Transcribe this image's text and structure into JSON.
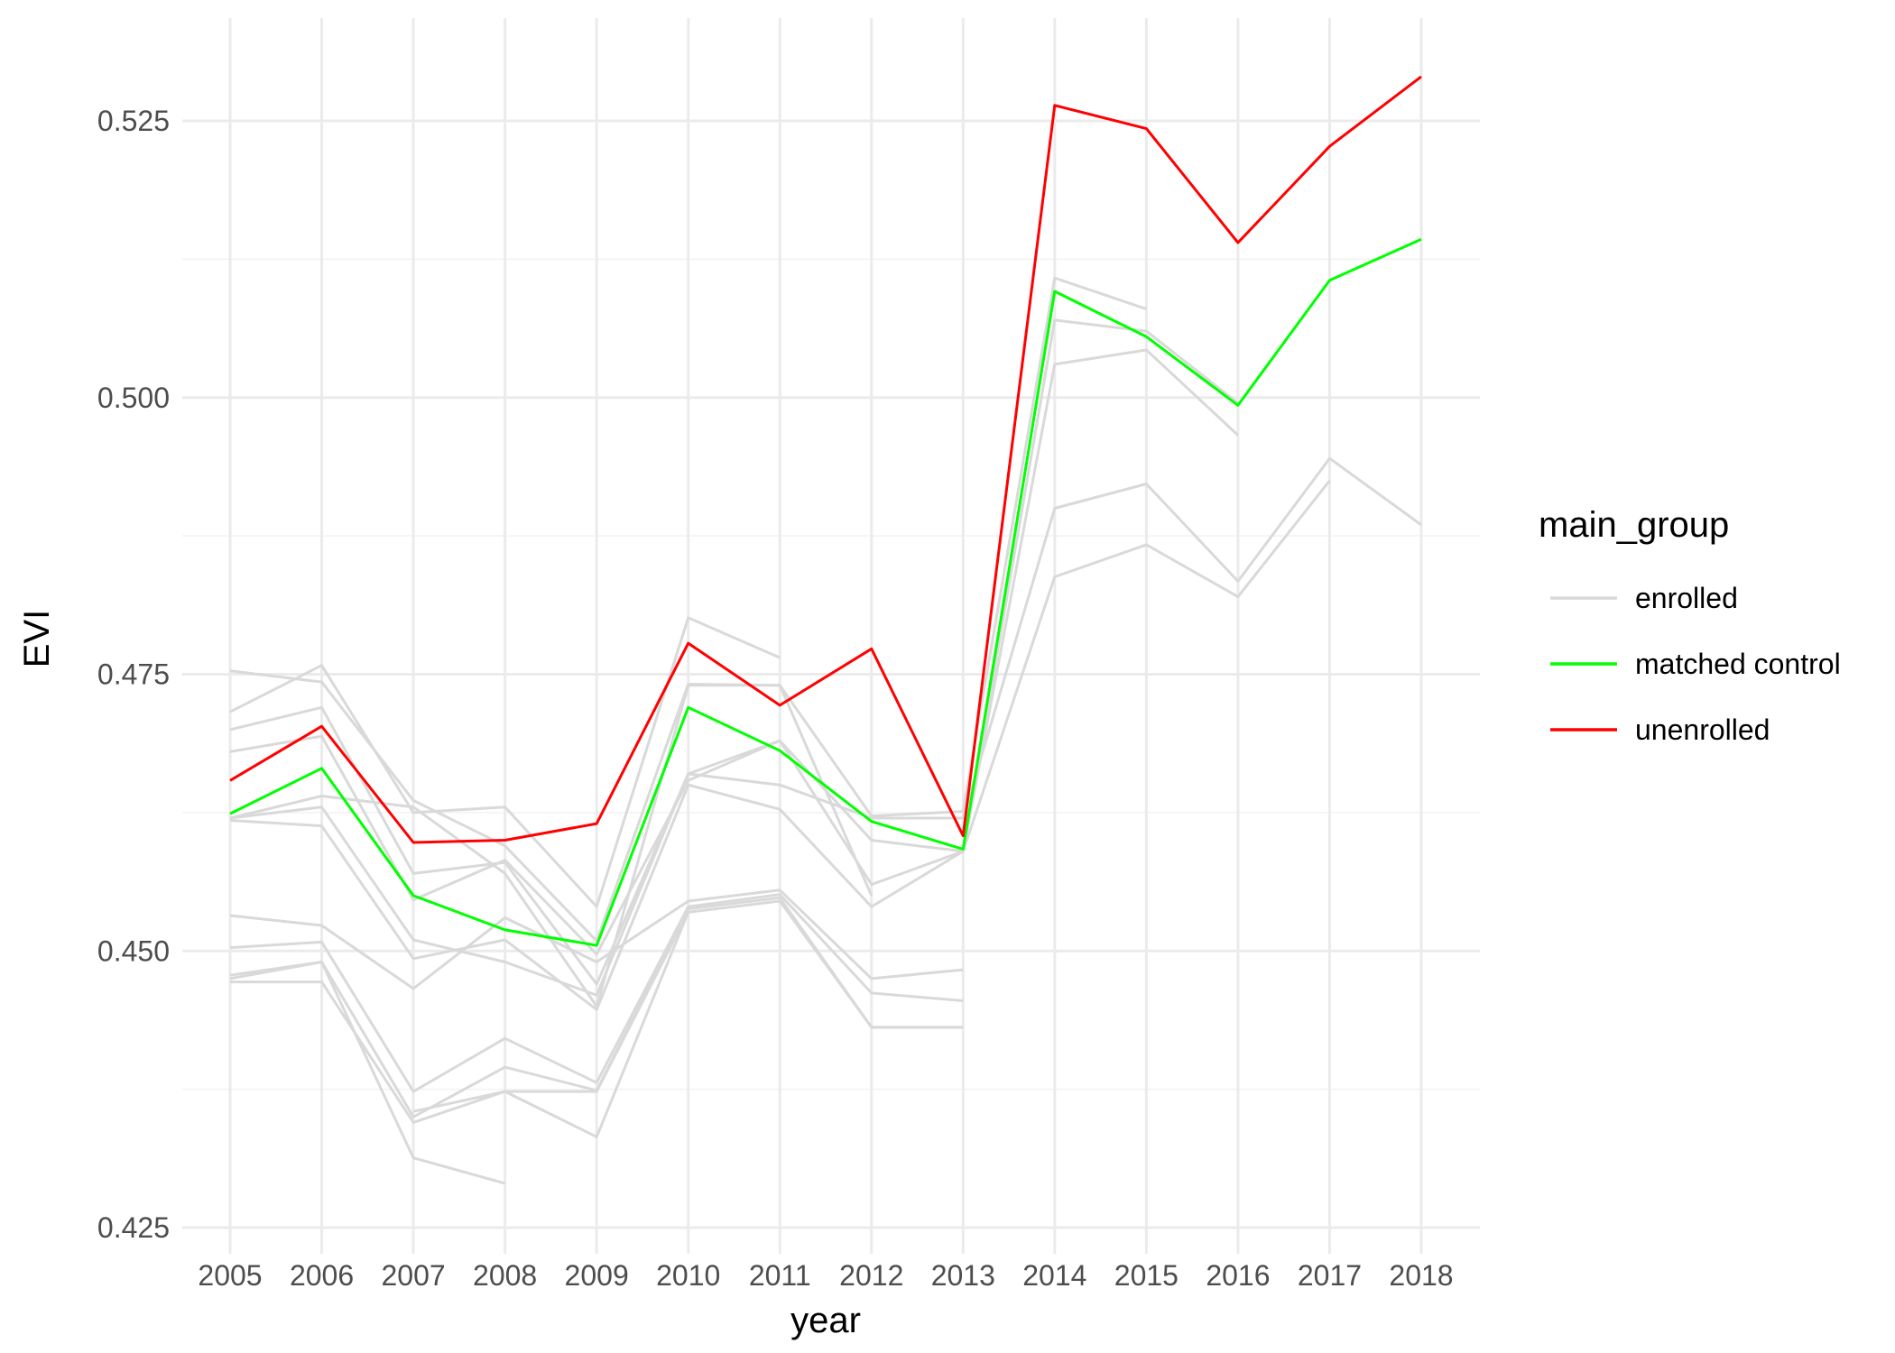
{
  "chart_data": {
    "type": "line",
    "xlabel": "year",
    "ylabel": "EVI",
    "x": [
      2005,
      2006,
      2007,
      2008,
      2009,
      2010,
      2011,
      2012,
      2013,
      2014,
      2015,
      2016,
      2017,
      2018
    ],
    "x_tick_labels": [
      "2005",
      "2006",
      "2007",
      "2008",
      "2009",
      "2010",
      "2011",
      "2012",
      "2013",
      "2014",
      "2015",
      "2016",
      "2017",
      "2018"
    ],
    "ylim": [
      0.425,
      0.5315
    ],
    "y_ticks": [
      0.425,
      0.45,
      0.475,
      0.5,
      0.525
    ],
    "y_tick_labels": [
      "0.425",
      "0.450",
      "0.475",
      "0.500",
      "0.525"
    ],
    "y_minor_ticks": [
      0.4375,
      0.4625,
      0.4875,
      0.5125
    ],
    "grid": true,
    "legend": {
      "title": "main_group",
      "placement": "right",
      "entries": [
        {
          "label": "enrolled",
          "color": "#d9d9d9"
        },
        {
          "label": "matched control",
          "color": "#00ff00"
        },
        {
          "label": "unenrolled",
          "color": "#ff0000"
        }
      ]
    },
    "series": [
      {
        "group": "enrolled",
        "color": "#d9d9d9",
        "values": [
          0.4753,
          0.4743,
          0.4636,
          0.4595,
          0.4509,
          0.4741,
          0.474,
          0.4622,
          0.4626,
          0.5108,
          0.508,
          null,
          null,
          null
        ]
      },
      {
        "group": "enrolled",
        "color": "#d9d9d9",
        "values": [
          0.4716,
          0.4758,
          0.4625,
          0.463,
          0.454,
          0.4801,
          0.4765,
          null,
          null,
          null,
          null,
          null,
          null,
          null
        ]
      },
      {
        "group": "enrolled",
        "color": "#d9d9d9",
        "values": [
          0.47,
          0.472,
          0.457,
          0.458,
          0.447,
          0.466,
          0.469,
          0.46,
          0.459,
          0.503,
          0.5043,
          0.4966,
          null,
          null
        ]
      },
      {
        "group": "enrolled",
        "color": "#d9d9d9",
        "values": [
          0.468,
          0.4694,
          0.4546,
          0.4582,
          0.4497,
          0.4654,
          0.469,
          0.456,
          0.459,
          0.507,
          0.506,
          0.4995,
          null,
          null
        ]
      },
      {
        "group": "enrolled",
        "color": "#d9d9d9",
        "values": [
          0.462,
          0.464,
          0.463,
          0.457,
          0.445,
          0.474,
          0.474,
          0.455,
          null,
          null,
          null,
          null,
          null,
          null
        ]
      },
      {
        "group": "enrolled",
        "color": "#d9d9d9",
        "values": [
          0.462,
          0.463,
          0.451,
          0.449,
          0.446,
          0.466,
          0.465,
          0.462,
          0.462,
          0.49,
          0.4922,
          0.4834,
          0.4945,
          0.4885
        ]
      },
      {
        "group": "enrolled",
        "color": "#d9d9d9",
        "values": [
          0.4618,
          0.4613,
          0.4493,
          0.451,
          0.4447,
          0.465,
          0.4628,
          0.454,
          0.459,
          0.4838,
          0.4867,
          0.482,
          0.4925,
          null
        ]
      },
      {
        "group": "enrolled",
        "color": "#d9d9d9",
        "values": [
          0.4532,
          0.4523,
          0.4466,
          0.453,
          0.449,
          0.4545,
          0.4555,
          0.4475,
          0.4483,
          null,
          null,
          null,
          null,
          null
        ]
      },
      {
        "group": "enrolled",
        "color": "#d9d9d9",
        "values": [
          0.4503,
          0.4508,
          0.4373,
          0.4421,
          0.4381,
          0.454,
          0.4551,
          0.4462,
          0.4455,
          null,
          null,
          null,
          null,
          null
        ]
      },
      {
        "group": "enrolled",
        "color": "#d9d9d9",
        "values": [
          0.4478,
          0.449,
          0.435,
          0.4395,
          0.4374,
          0.4538,
          0.4548,
          0.4431,
          0.4431,
          null,
          null,
          null,
          null,
          null
        ]
      },
      {
        "group": "enrolled",
        "color": "#d9d9d9",
        "values": [
          0.4472,
          0.4472,
          0.4345,
          0.4373,
          0.4373,
          0.4535,
          0.4545,
          0.4431,
          0.4431,
          null,
          null,
          null,
          null,
          null
        ]
      },
      {
        "group": "enrolled",
        "color": "#d9d9d9",
        "values": [
          0.4475,
          0.449,
          0.4313,
          0.429,
          null,
          null,
          null,
          null,
          null,
          null,
          null,
          null,
          null,
          null
        ]
      },
      {
        "group": "enrolled",
        "color": "#d9d9d9",
        "values": [
          null,
          null,
          0.4355,
          0.4373,
          0.4332,
          0.4535,
          null,
          null,
          null,
          null,
          null,
          null,
          null,
          null
        ]
      },
      {
        "group": "matched control",
        "color": "#00ff00",
        "values": [
          0.4624,
          0.4665,
          0.455,
          0.4519,
          0.4505,
          0.472,
          0.4681,
          0.4617,
          0.4592,
          0.5096,
          0.5055,
          0.4993,
          0.5106,
          0.5143
        ]
      },
      {
        "group": "unenrolled",
        "color": "#ff0000",
        "values": [
          0.4654,
          0.4703,
          0.4598,
          0.46,
          0.4615,
          0.4778,
          0.4722,
          0.4773,
          0.4604,
          0.5264,
          0.5243,
          0.514,
          0.5227,
          0.529
        ]
      }
    ]
  }
}
